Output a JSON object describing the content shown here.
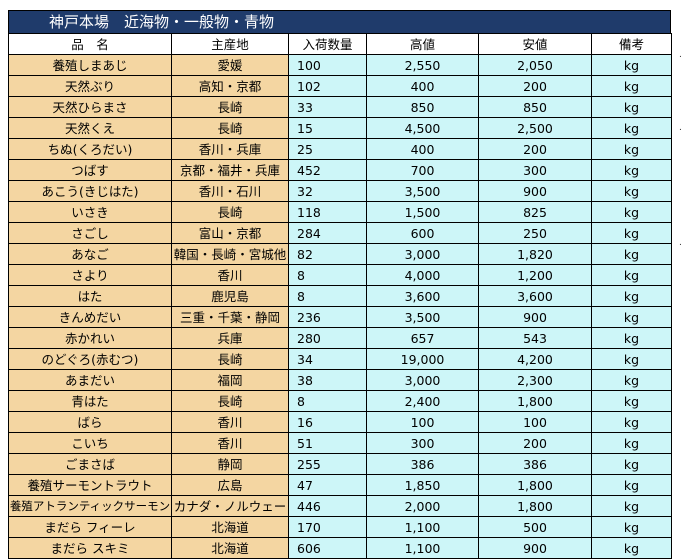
{
  "title": "神戸本場　近海物・一般物・青物",
  "columns": [
    "品　名",
    "主産地",
    "入荷数量",
    "高値",
    "安値",
    "備考"
  ],
  "rows": [
    [
      "養殖しまあじ",
      "愛媛",
      "100",
      "2,550",
      "2,050",
      "kg"
    ],
    [
      "天然ぶり",
      "高知・京都",
      "102",
      "400",
      "200",
      "kg"
    ],
    [
      "天然ひらまさ",
      "長崎",
      "33",
      "850",
      "850",
      "kg"
    ],
    [
      "天然くえ",
      "長崎",
      "15",
      "4,500",
      "2,500",
      "kg"
    ],
    [
      "ちぬ(くろだい)",
      "香川・兵庫",
      "25",
      "400",
      "200",
      "kg"
    ],
    [
      "つばす",
      "京都・福井・兵庫",
      "452",
      "700",
      "300",
      "kg"
    ],
    [
      "あこう(きじはた)",
      "香川・石川",
      "32",
      "3,500",
      "900",
      "kg"
    ],
    [
      "いさき",
      "長崎",
      "118",
      "1,500",
      "825",
      "kg"
    ],
    [
      "さごし",
      "富山・京都",
      "284",
      "600",
      "250",
      "kg"
    ],
    [
      "あなご",
      "韓国・長崎・宮城他",
      "82",
      "3,000",
      "1,820",
      "kg"
    ],
    [
      "さより",
      "香川",
      "8",
      "4,000",
      "1,200",
      "kg"
    ],
    [
      "はた",
      "鹿児島",
      "8",
      "3,600",
      "3,600",
      "kg"
    ],
    [
      "きんめだい",
      "三重・千葉・静岡",
      "236",
      "3,500",
      "900",
      "kg"
    ],
    [
      "赤かれい",
      "兵庫",
      "280",
      "657",
      "543",
      "kg"
    ],
    [
      "のどぐろ(赤むつ)",
      "長崎",
      "34",
      "19,000",
      "4,200",
      "kg"
    ],
    [
      "あまだい",
      "福岡",
      "38",
      "3,000",
      "2,300",
      "kg"
    ],
    [
      "青はた",
      "長崎",
      "8",
      "2,400",
      "1,800",
      "kg"
    ],
    [
      "ばら",
      "香川",
      "16",
      "100",
      "100",
      "kg"
    ],
    [
      "こいち",
      "香川",
      "51",
      "300",
      "200",
      "kg"
    ],
    [
      "ごまさば",
      "静岡",
      "255",
      "386",
      "386",
      "kg"
    ],
    [
      "養殖サーモントラウト",
      "広島",
      "47",
      "1,850",
      "1,800",
      "kg"
    ],
    [
      "養殖アトランティックサーモン",
      "カナダ・ノルウェー",
      "446",
      "2,000",
      "1,800",
      "kg"
    ],
    [
      "まだら フィーレ",
      "北海道",
      "170",
      "1,100",
      "500",
      "kg"
    ],
    [
      "まだら スキミ",
      "北海道",
      "606",
      "1,100",
      "900",
      "kg"
    ]
  ],
  "colors": {
    "title_bg": "#1f3b6b",
    "name_bg": "#f4d6a2",
    "value_bg": "#cdf6f8"
  }
}
